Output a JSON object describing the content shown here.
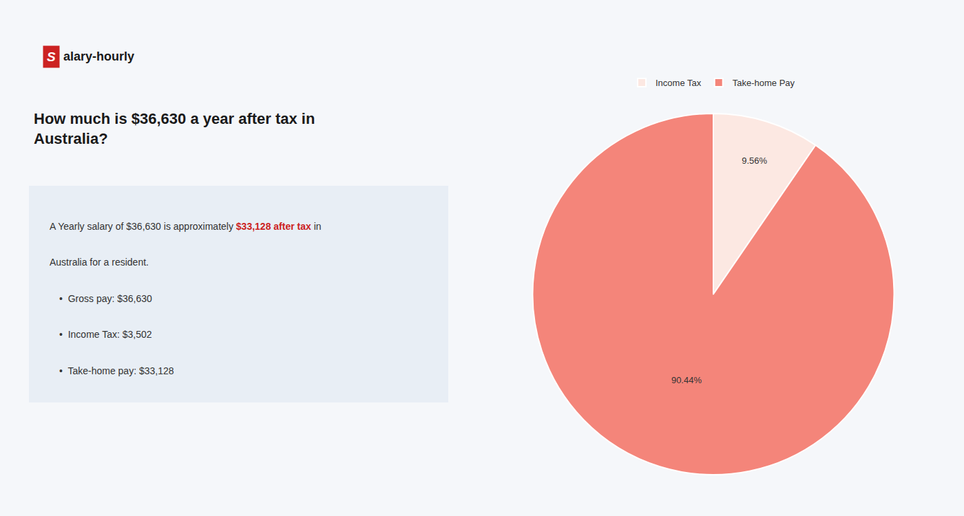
{
  "chart_data": {
    "type": "pie",
    "title": "How much is $36,630 a year after tax in\nAustralia?",
    "annotations": [
      [
        {
          "text": "S",
          "color": "#cc2222"
        },
        {
          "text": "alary-hourly"
        }
      ],
      [
        {
          "text": "A Yearly salary of $36,630 is approximately "
        },
        {
          "text": "$33,128 after tax",
          "color": "#cc2222"
        },
        {
          "text": " in"
        }
      ],
      "Australia for a resident.",
      "•  Gross pay: $36,630",
      "•  Income Tax: $3,502",
      "•  Take-home pay: $33,128"
    ],
    "categories": [
      "Income Tax",
      "Take-home Pay"
    ],
    "values": [
      9.56,
      90.44
    ],
    "value_labels": [
      "9.56%",
      "90.44%"
    ],
    "colors": [
      "#fce8e2",
      "#f4857a"
    ],
    "data_labels": true,
    "legend": "top"
  }
}
